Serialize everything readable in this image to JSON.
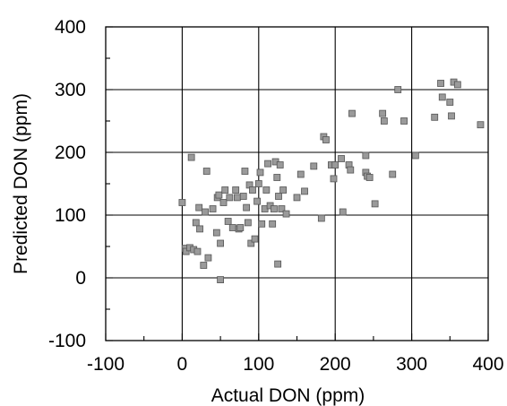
{
  "chart_data": {
    "type": "scatter",
    "title": "",
    "xlabel": "Actual DON (ppm)",
    "ylabel": "Predicted DON (ppm)",
    "xlim": [
      -100,
      400
    ],
    "ylim": [
      -100,
      400
    ],
    "xticks": [
      -100,
      0,
      100,
      200,
      300,
      400
    ],
    "yticks": [
      -100,
      0,
      100,
      200,
      300,
      400
    ],
    "x_minor_step": 50,
    "y_minor_step": 50,
    "grid": true,
    "grid_lines": [
      0,
      100,
      200,
      300
    ],
    "marker_color": "#9a9a9a",
    "points": [
      [
        0,
        120
      ],
      [
        4,
        47
      ],
      [
        5,
        42
      ],
      [
        10,
        48
      ],
      [
        12,
        192
      ],
      [
        15,
        45
      ],
      [
        18,
        88
      ],
      [
        20,
        42
      ],
      [
        22,
        112
      ],
      [
        23,
        78
      ],
      [
        28,
        20
      ],
      [
        30,
        105
      ],
      [
        32,
        170
      ],
      [
        34,
        32
      ],
      [
        40,
        110
      ],
      [
        45,
        72
      ],
      [
        46,
        128
      ],
      [
        48,
        132
      ],
      [
        50,
        55
      ],
      [
        50,
        -3
      ],
      [
        54,
        120
      ],
      [
        56,
        140
      ],
      [
        60,
        90
      ],
      [
        62,
        128
      ],
      [
        66,
        80
      ],
      [
        70,
        140
      ],
      [
        72,
        128
      ],
      [
        74,
        78
      ],
      [
        76,
        80
      ],
      [
        80,
        130
      ],
      [
        82,
        170
      ],
      [
        84,
        112
      ],
      [
        86,
        88
      ],
      [
        88,
        148
      ],
      [
        90,
        55
      ],
      [
        92,
        140
      ],
      [
        95,
        62
      ],
      [
        98,
        122
      ],
      [
        100,
        150
      ],
      [
        102,
        168
      ],
      [
        104,
        86
      ],
      [
        108,
        110
      ],
      [
        110,
        140
      ],
      [
        112,
        182
      ],
      [
        115,
        115
      ],
      [
        118,
        86
      ],
      [
        120,
        110
      ],
      [
        122,
        185
      ],
      [
        124,
        160
      ],
      [
        125,
        22
      ],
      [
        126,
        130
      ],
      [
        128,
        180
      ],
      [
        130,
        110
      ],
      [
        132,
        140
      ],
      [
        136,
        102
      ],
      [
        150,
        128
      ],
      [
        155,
        165
      ],
      [
        160,
        138
      ],
      [
        172,
        178
      ],
      [
        182,
        95
      ],
      [
        185,
        225
      ],
      [
        188,
        220
      ],
      [
        195,
        180
      ],
      [
        198,
        158
      ],
      [
        200,
        180
      ],
      [
        208,
        190
      ],
      [
        210,
        105
      ],
      [
        218,
        180
      ],
      [
        220,
        172
      ],
      [
        222,
        262
      ],
      [
        240,
        195
      ],
      [
        240,
        168
      ],
      [
        242,
        162
      ],
      [
        245,
        160
      ],
      [
        252,
        118
      ],
      [
        262,
        262
      ],
      [
        264,
        250
      ],
      [
        275,
        165
      ],
      [
        282,
        300
      ],
      [
        290,
        250
      ],
      [
        305,
        195
      ],
      [
        330,
        256
      ],
      [
        338,
        310
      ],
      [
        340,
        288
      ],
      [
        350,
        280
      ],
      [
        352,
        258
      ],
      [
        355,
        312
      ],
      [
        360,
        308
      ],
      [
        390,
        244
      ]
    ]
  }
}
